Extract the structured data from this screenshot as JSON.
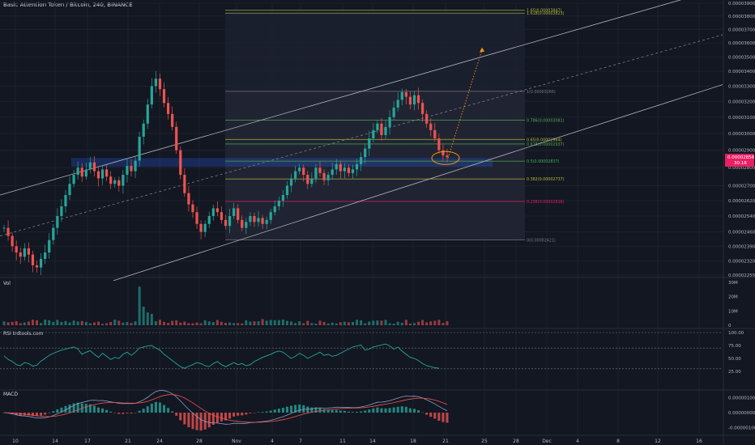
{
  "header": {
    "title": "Basic Attention Token / Bitcoin, 240, BINANCE"
  },
  "price_badge": {
    "line1": "0.00002856",
    "line2": "30:16"
  },
  "colors": {
    "bg": "#131722",
    "grid": "#1e222d",
    "up": "#26a69a",
    "down": "#ef5350",
    "channel": "#b2b5be",
    "fib_top": "#b5b83a",
    "fib_mid": "#4caf50",
    "fib_low": "#e91e63",
    "fib_ref": "#787b86",
    "zone": "#2962ff",
    "arrow": "#f7931a",
    "circle": "#ff9800",
    "rsi": "#26a69a",
    "macd_line": "#8e9cc7",
    "signal_line": "#ef5350",
    "badge": "#e91e63"
  },
  "chart_data": [
    {
      "type": "candlestick",
      "title": "Basic Attention Token / Bitcoin, 240, BINANCE",
      "y_ticks": [
        "0.00003900",
        "0.00003800",
        "0.00003700",
        "0.00003600",
        "0.00003500",
        "0.00003400",
        "0.00003300",
        "0.00003200",
        "0.00003100",
        "0.00003000",
        "0.00002900",
        "0.00002800",
        "0.00002700",
        "0.00002620",
        "0.00002540",
        "0.00002460",
        "0.00002390",
        "0.00002320",
        "0.00002255"
      ],
      "y_scale": "log",
      "x_ticks": [
        "10",
        "14",
        "17",
        "21",
        "24",
        "28",
        "Nov",
        "4",
        "7",
        "11",
        "14",
        "18",
        "21",
        "25",
        "28",
        "Dec",
        "4",
        "8",
        "12",
        "16"
      ],
      "series": [
        {
          "values": [
            24.8,
            24.4,
            23.9,
            23.6,
            23.4,
            23.8,
            23.5,
            23.0,
            22.9,
            23.3,
            23.6,
            24.2,
            24.8,
            25.4,
            25.9,
            26.5,
            27.1,
            27.6,
            28.0,
            27.5,
            27.9,
            28.3,
            27.8,
            27.4,
            27.9,
            27.5,
            27.1,
            27.3,
            27.0,
            27.6,
            28.1,
            27.8,
            28.4,
            29.8,
            30.6,
            31.8,
            33.0,
            33.5,
            32.8,
            31.9,
            31.2,
            30.4,
            29.0,
            27.6,
            26.6,
            26.0,
            25.6,
            25.0,
            24.6,
            25.0,
            25.4,
            25.8,
            25.6,
            25.2,
            24.9,
            25.4,
            25.8,
            25.2,
            24.8,
            25.1,
            25.4,
            25.1,
            25.3,
            25.0,
            25.2,
            25.6,
            25.9,
            26.2,
            26.5,
            27.0,
            27.4,
            27.8,
            28.0,
            27.6,
            27.1,
            27.4,
            28.0,
            27.7,
            27.3,
            27.6,
            27.9,
            28.2,
            27.8,
            28.0,
            27.7,
            27.9,
            28.2,
            28.6,
            29.1,
            29.7,
            30.2,
            30.6,
            29.9,
            30.4,
            31.0,
            31.6,
            32.1,
            32.6,
            32.3,
            31.8,
            32.4,
            31.9,
            31.2,
            30.6,
            30.2,
            29.7,
            29.0,
            28.7,
            28.6
          ]
        }
      ],
      "annotations": {
        "fib_levels": [
          {
            "label": "1.65(0.00003847)",
            "value": 38.47
          },
          {
            "label": "1.618(0.00003823)",
            "value": 38.23
          },
          {
            "label": "1(0.00003266)",
            "value": 32.66
          },
          {
            "label": "0.786(0.00003081)",
            "value": 30.81
          },
          {
            "label": "0.65(0.00002964)",
            "value": 29.64
          },
          {
            "label": "0.618(0.00002937)",
            "value": 29.37
          },
          {
            "label": "0.5(0.00002837)",
            "value": 28.37
          },
          {
            "label": "0.382(0.00002737)",
            "value": 27.37
          },
          {
            "label": "0.236(0.00002616)",
            "value": 26.16
          },
          {
            "label": "0(0.00002421)",
            "value": 24.21
          }
        ]
      }
    },
    {
      "type": "bar",
      "title": "Vol",
      "y_ticks": [
        "30M",
        "20M",
        "10M",
        "0"
      ],
      "ylim": [
        0,
        30
      ]
    },
    {
      "type": "line",
      "title": "RSI trdtools.com",
      "y_ticks": [
        "100.00",
        "75.00",
        "50.00",
        "25.00"
      ],
      "ylim": [
        0,
        100
      ],
      "series": [
        {
          "values": [
            55,
            48,
            44,
            38,
            36,
            42,
            40,
            35,
            37,
            45,
            50,
            56,
            60,
            63,
            66,
            68,
            70,
            72,
            68,
            58,
            62,
            65,
            58,
            52,
            60,
            54,
            48,
            52,
            50,
            58,
            62,
            56,
            62,
            70,
            72,
            74,
            75,
            70,
            66,
            58,
            52,
            46,
            40,
            34,
            31,
            35,
            38,
            42,
            40,
            36,
            34,
            40,
            44,
            38,
            34,
            38,
            42,
            38,
            40,
            36,
            38,
            44,
            48,
            52,
            55,
            58,
            62,
            64,
            62,
            56,
            50,
            54,
            60,
            56,
            50,
            54,
            58,
            62,
            56,
            58,
            54,
            56,
            60,
            64,
            68,
            72,
            74,
            76,
            66,
            68,
            72,
            74,
            76,
            78,
            74,
            68,
            72,
            64,
            58,
            52,
            50,
            46,
            40,
            36,
            34,
            32,
            31
          ]
        }
      ]
    },
    {
      "type": "line",
      "title": "MACD",
      "y_ticks": [
        "0.00000100",
        "0.00000000",
        "-0.00000100"
      ],
      "ylim": [
        -1.3,
        1.3
      ]
    }
  ]
}
